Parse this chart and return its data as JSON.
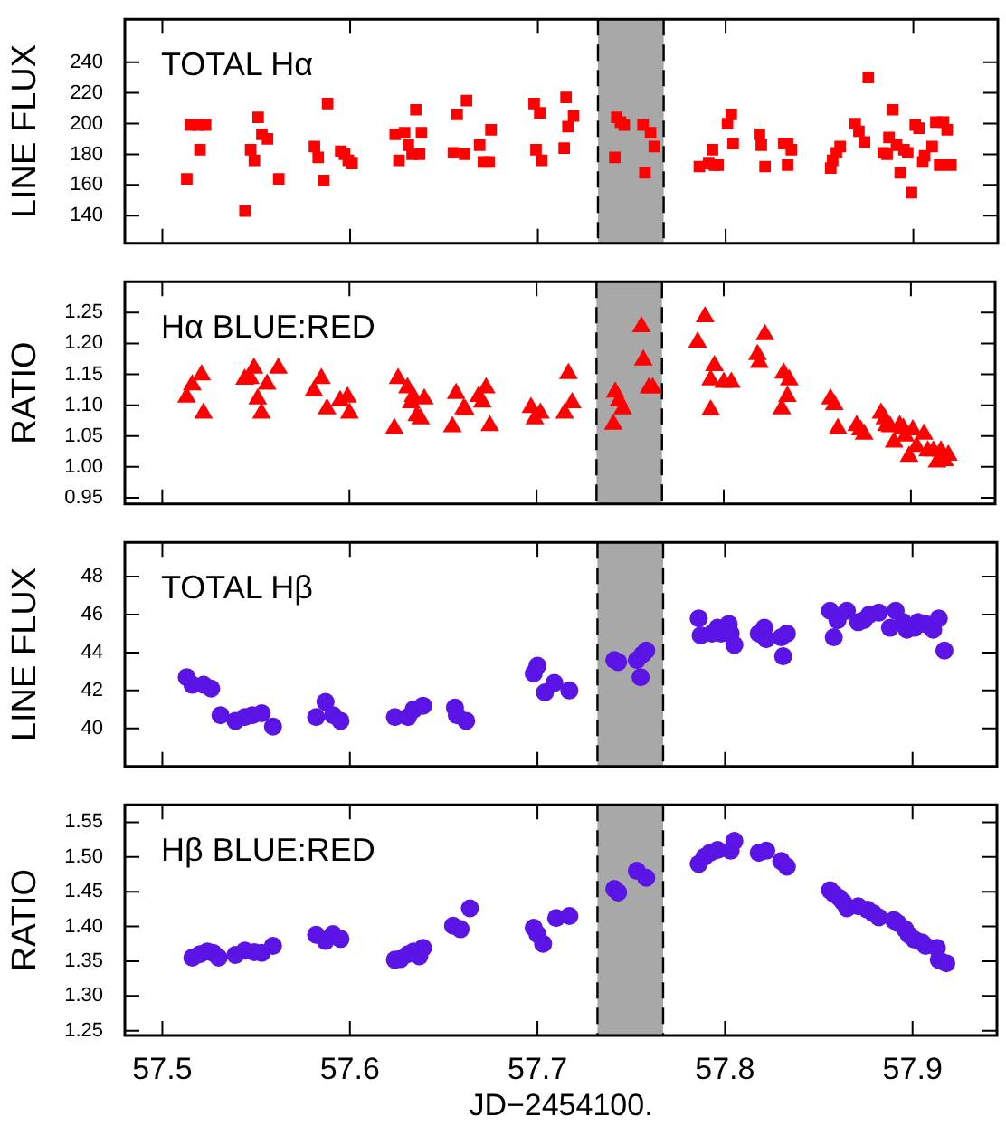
{
  "chart_data": [
    {
      "type": "scatter",
      "ylabel": "LINE FLUX",
      "annotations": [
        "TOTAL Hα"
      ],
      "ref_lines": [
        {
          "axis": "x",
          "value": 57.732,
          "color": "#000000",
          "line_style": "dashed"
        },
        {
          "axis": "x",
          "value": 57.767,
          "color": "#000000",
          "line_style": "dashed"
        }
      ],
      "marker": "square",
      "color": "#ff0000",
      "tick_labels": "y",
      "xlim": [
        57.48,
        57.945
      ],
      "xticks": [
        57.5,
        57.6,
        57.7,
        57.8,
        57.9
      ],
      "ylim": [
        122,
        268
      ],
      "yticks": [
        140,
        160,
        180,
        200,
        220,
        240
      ],
      "bands": [
        {
          "axis": "x",
          "from": 57.732,
          "to": 57.767,
          "color": "#a8a8a8"
        }
      ],
      "x": [
        57.513,
        57.515,
        57.519,
        57.523,
        57.52,
        57.544,
        57.547,
        57.549,
        57.551,
        57.553,
        57.556,
        57.562,
        57.581,
        57.583,
        57.586,
        57.588,
        57.595,
        57.597,
        57.599,
        57.601,
        57.624,
        57.626,
        57.629,
        57.631,
        57.633,
        57.635,
        57.637,
        57.638,
        57.655,
        57.657,
        57.661,
        57.662,
        57.669,
        57.671,
        57.674,
        57.675,
        57.698,
        57.699,
        57.701,
        57.702,
        57.714,
        57.715,
        57.716,
        57.719,
        57.741,
        57.742,
        57.744,
        57.746,
        57.756,
        57.757,
        57.76,
        57.762,
        57.786,
        57.791,
        57.793,
        57.794,
        57.796,
        57.801,
        57.803,
        57.804,
        57.818,
        57.819,
        57.821,
        57.831,
        57.833,
        57.833,
        57.835,
        57.856,
        57.857,
        57.859,
        57.861,
        57.869,
        57.871,
        57.874,
        57.876,
        57.884,
        57.886,
        57.887,
        57.889,
        57.891,
        57.893,
        57.895,
        57.897,
        57.899,
        57.901,
        57.903,
        57.905,
        57.906,
        57.91,
        57.912,
        57.914,
        57.916,
        57.918,
        57.92
      ],
      "values": [
        164,
        199,
        199,
        199,
        183,
        143,
        183,
        176,
        204,
        193,
        190,
        164,
        185,
        178,
        163,
        213,
        182,
        180,
        176,
        174,
        193,
        176,
        194,
        186,
        180,
        209,
        180,
        194,
        181,
        206,
        180,
        215,
        186,
        175,
        175,
        196,
        213,
        183,
        207,
        176,
        184,
        217,
        198,
        205,
        178,
        204,
        201,
        199,
        199,
        168,
        194,
        185,
        172,
        174,
        183,
        173,
        173,
        200,
        206,
        187,
        193,
        186,
        172,
        187,
        187,
        173,
        183,
        171,
        176,
        181,
        185,
        200,
        195,
        188,
        230,
        181,
        180,
        191,
        209,
        186,
        168,
        183,
        181,
        155,
        199,
        197,
        175,
        179,
        185,
        201,
        173,
        201,
        196,
        173
      ]
    },
    {
      "type": "scatter",
      "ylabel": "RATIO",
      "annotations": [
        "Hα BLUE:RED"
      ],
      "ref_lines": [
        {
          "axis": "x",
          "value": 57.732,
          "color": "#000000",
          "line_style": "dashed"
        },
        {
          "axis": "x",
          "value": 57.767,
          "color": "#000000",
          "line_style": "dashed"
        }
      ],
      "marker": "triangle",
      "color": "#ff0000",
      "tick_labels": "y",
      "xlim": [
        57.48,
        57.945
      ],
      "xticks": [
        57.5,
        57.6,
        57.7,
        57.8,
        57.9
      ],
      "ylim": [
        0.94,
        1.3
      ],
      "yticks": [
        0.95,
        {
          "value": 1,
          "label": "1.00"
        },
        1.05,
        {
          "value": 1.1,
          "label": "1.10"
        },
        1.15,
        {
          "value": 1.2,
          "label": "1.20"
        },
        1.25
      ],
      "bands": [
        {
          "axis": "x",
          "from": 57.732,
          "to": 57.767,
          "color": "#a8a8a8"
        }
      ],
      "x": [
        57.513,
        57.516,
        57.521,
        57.522,
        57.544,
        57.547,
        57.549,
        57.551,
        57.553,
        57.556,
        57.562,
        57.581,
        57.585,
        57.588,
        57.595,
        57.599,
        57.6,
        57.624,
        57.626,
        57.631,
        57.634,
        57.633,
        57.636,
        57.638,
        57.64,
        57.655,
        57.657,
        57.661,
        57.662,
        57.669,
        57.671,
        57.673,
        57.675,
        57.697,
        57.699,
        57.702,
        57.715,
        57.717,
        57.719,
        57.741,
        57.742,
        57.744,
        57.746,
        57.756,
        57.757,
        57.76,
        57.762,
        57.786,
        57.79,
        57.793,
        57.795,
        57.793,
        57.8,
        57.804,
        57.818,
        57.819,
        57.822,
        57.831,
        57.832,
        57.834,
        57.835,
        57.857,
        57.859,
        57.861,
        57.871,
        57.873,
        57.875,
        57.884,
        57.886,
        57.887,
        57.889,
        57.891,
        57.894,
        57.896,
        57.897,
        57.899,
        57.901,
        57.903,
        57.907,
        57.909,
        57.912,
        57.914,
        57.916,
        57.918,
        57.92
      ],
      "values": [
        1.113,
        1.133,
        1.149,
        1.087,
        1.142,
        1.143,
        1.16,
        1.11,
        1.087,
        1.134,
        1.16,
        1.123,
        1.143,
        1.094,
        1.107,
        1.113,
        1.087,
        1.062,
        1.143,
        1.128,
        1.114,
        1.104,
        1.083,
        1.078,
        1.11,
        1.065,
        1.119,
        1.094,
        1.092,
        1.114,
        1.105,
        1.128,
        1.067,
        1.096,
        1.078,
        1.087,
        1.087,
        1.151,
        1.104,
        1.069,
        1.121,
        1.107,
        1.094,
        1.227,
        1.173,
        1.128,
        1.128,
        1.202,
        1.243,
        1.092,
        1.164,
        1.141,
        1.137,
        1.137,
        1.182,
        1.169,
        1.214,
        1.094,
        1.152,
        1.114,
        1.141,
        1.11,
        1.101,
        1.062,
        1.067,
        1.06,
        1.053,
        1.087,
        1.078,
        1.067,
        1.065,
        1.04,
        1.067,
        1.062,
        1.05,
        1.017,
        1.06,
        1.033,
        1.053,
        1.026,
        1.026,
        1.008,
        1.026,
        1.01,
        1.019
      ]
    },
    {
      "type": "scatter",
      "ylabel": "LINE FLUX",
      "annotations": [
        "TOTAL Hβ"
      ],
      "ref_lines": [
        {
          "axis": "x",
          "value": 57.732,
          "color": "#000000",
          "line_style": "dashed"
        },
        {
          "axis": "x",
          "value": 57.767,
          "color": "#000000",
          "line_style": "dashed"
        }
      ],
      "marker": "circle",
      "color": "#5a14e6",
      "tick_labels": "y",
      "xlim": [
        57.48,
        57.945
      ],
      "xticks": [
        57.5,
        57.6,
        57.7,
        57.8,
        57.9
      ],
      "ylim": [
        38,
        49.8
      ],
      "yticks": [
        40,
        42,
        44,
        46,
        48
      ],
      "bands": [
        {
          "axis": "x",
          "from": 57.732,
          "to": 57.767,
          "color": "#a8a8a8"
        }
      ],
      "x": [
        57.513,
        57.516,
        57.522,
        57.526,
        57.531,
        57.539,
        57.544,
        57.548,
        57.553,
        57.559,
        57.582,
        57.587,
        57.591,
        57.595,
        57.624,
        57.631,
        57.634,
        57.639,
        57.656,
        57.657,
        57.662,
        57.698,
        57.7,
        57.704,
        57.709,
        57.717,
        57.741,
        57.743,
        57.753,
        57.755,
        57.756,
        57.758,
        57.786,
        57.787,
        57.793,
        57.796,
        57.798,
        57.802,
        57.803,
        57.805,
        57.818,
        57.821,
        57.822,
        57.83,
        57.831,
        57.833,
        57.856,
        57.858,
        57.86,
        57.865,
        57.871,
        57.874,
        57.877,
        57.882,
        57.888,
        57.891,
        57.895,
        57.897,
        57.901,
        57.903,
        57.907,
        57.911,
        57.914,
        57.917
      ],
      "values": [
        42.7,
        42.3,
        42.3,
        42.1,
        40.7,
        40.4,
        40.6,
        40.7,
        40.8,
        40.1,
        40.6,
        41.4,
        40.7,
        40.4,
        40.6,
        40.6,
        41,
        41.2,
        41.1,
        40.7,
        40.4,
        42.9,
        43.3,
        41.9,
        42.4,
        42,
        43.6,
        43.5,
        43.6,
        42.7,
        43.9,
        44.1,
        45.8,
        44.9,
        45,
        45.3,
        45,
        45.5,
        45,
        44.4,
        45,
        45.3,
        44.7,
        44.8,
        43.8,
        45,
        46.2,
        44.8,
        45.7,
        46.2,
        45.6,
        45.7,
        46,
        46.1,
        45.3,
        46.2,
        45.6,
        45.2,
        45.3,
        45.6,
        45.5,
        45.2,
        45.8,
        44.1
      ]
    },
    {
      "type": "scatter",
      "ylabel": "RATIO",
      "xlabel": "JD−2454100.",
      "annotations": [
        "Hβ BLUE:RED"
      ],
      "ref_lines": [
        {
          "axis": "x",
          "value": 57.732,
          "color": "#000000",
          "line_style": "dashed"
        },
        {
          "axis": "x",
          "value": 57.767,
          "color": "#000000",
          "line_style": "dashed"
        }
      ],
      "marker": "circle",
      "color": "#5a14e6",
      "xlim": [
        57.48,
        57.945
      ],
      "xticks": [
        57.5,
        57.6,
        57.7,
        57.8,
        57.9
      ],
      "ylim": [
        1.243,
        1.575
      ],
      "yticks": [
        1.25,
        {
          "value": 1.3,
          "label": "1.30"
        },
        1.35,
        {
          "value": 1.4,
          "label": "1.40"
        },
        1.45,
        {
          "value": 1.5,
          "label": "1.50"
        },
        1.55
      ],
      "bands": [
        {
          "axis": "x",
          "from": 57.732,
          "to": 57.767,
          "color": "#a8a8a8"
        }
      ],
      "x": [
        57.516,
        57.52,
        57.524,
        57.527,
        57.53,
        57.539,
        57.544,
        57.549,
        57.553,
        57.559,
        57.582,
        57.587,
        57.591,
        57.595,
        57.624,
        57.627,
        57.631,
        57.634,
        57.637,
        57.639,
        57.655,
        57.659,
        57.664,
        57.698,
        57.7,
        57.703,
        57.71,
        57.717,
        57.741,
        57.743,
        57.753,
        57.758,
        57.786,
        57.789,
        57.792,
        57.796,
        57.803,
        57.805,
        57.818,
        57.822,
        57.83,
        57.833,
        57.856,
        57.858,
        57.861,
        57.863,
        57.865,
        57.871,
        57.876,
        57.879,
        57.882,
        57.89,
        57.892,
        57.896,
        57.898,
        57.901,
        57.905,
        57.907,
        57.913,
        57.914,
        57.918
      ],
      "values": [
        1.355,
        1.36,
        1.364,
        1.362,
        1.355,
        1.359,
        1.365,
        1.363,
        1.362,
        1.372,
        1.388,
        1.379,
        1.389,
        1.382,
        1.352,
        1.353,
        1.36,
        1.364,
        1.357,
        1.369,
        1.401,
        1.396,
        1.426,
        1.398,
        1.389,
        1.375,
        1.412,
        1.415,
        1.454,
        1.449,
        1.48,
        1.47,
        1.49,
        1.5,
        1.506,
        1.51,
        1.509,
        1.523,
        1.506,
        1.509,
        1.494,
        1.486,
        1.452,
        1.447,
        1.441,
        1.435,
        1.426,
        1.429,
        1.424,
        1.419,
        1.413,
        1.409,
        1.405,
        1.396,
        1.388,
        1.381,
        1.377,
        1.372,
        1.369,
        1.352,
        1.347
      ]
    }
  ]
}
